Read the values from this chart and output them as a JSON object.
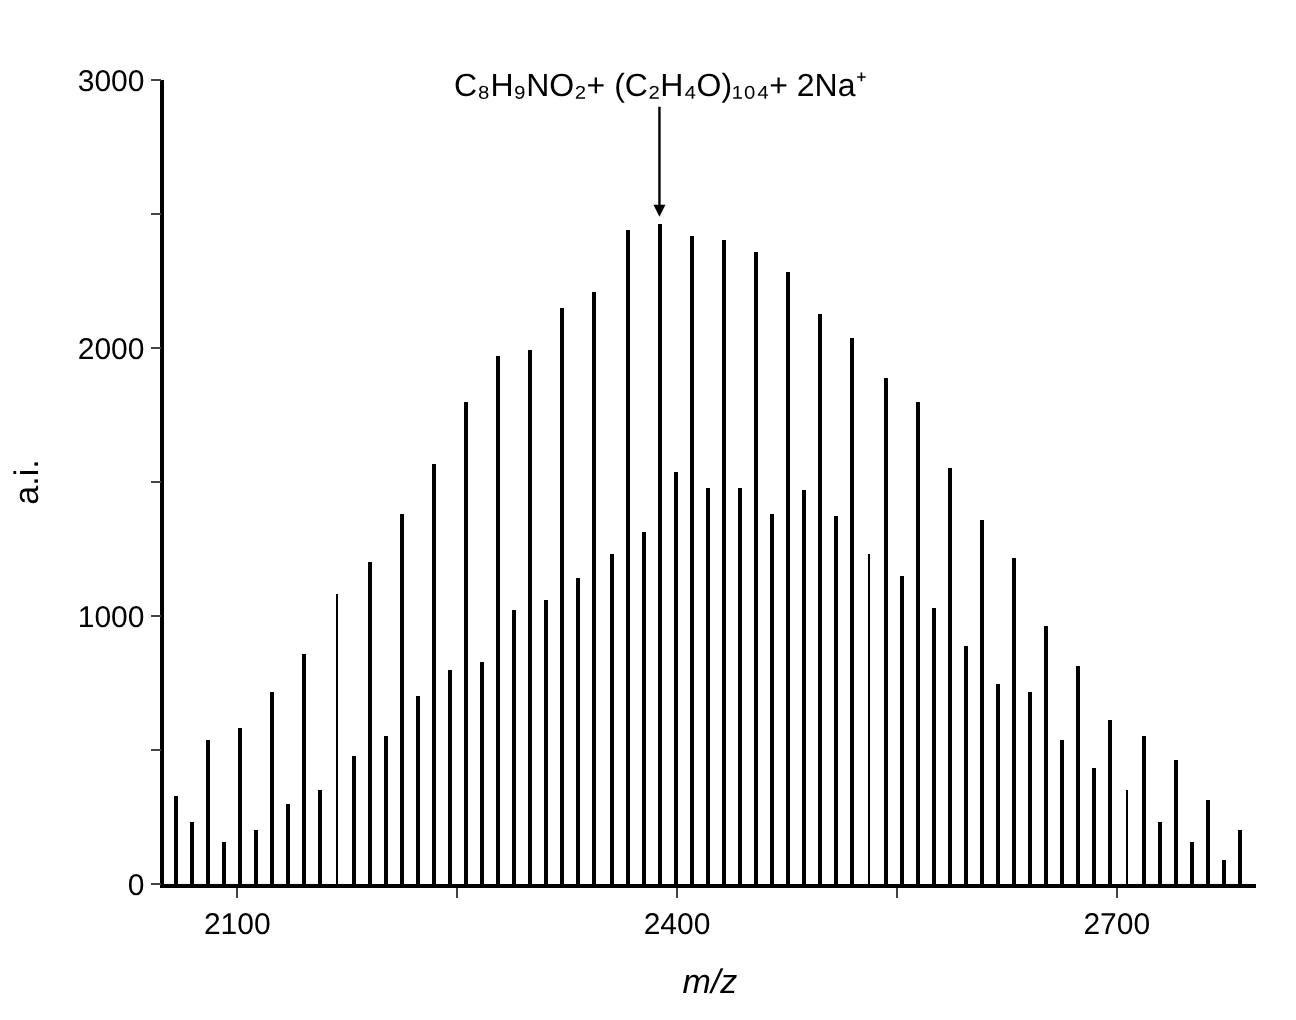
{
  "chart_data": {
    "type": "bar",
    "xlabel": "m/z",
    "ylabel": "a.i.",
    "annotations": [
      {
        "text": "C₈H₉NO₂+ (C₂H₄O)₁₀₄+ 2Na⁺",
        "x": 2388,
        "y": 2460
      }
    ],
    "x": [
      2058,
      2069,
      2080,
      2091,
      2102,
      2113,
      2124,
      2135,
      2146,
      2157,
      2168,
      2179,
      2190,
      2201,
      2212,
      2223,
      2234,
      2245,
      2256,
      2267,
      2278,
      2289,
      2300,
      2311,
      2322,
      2333,
      2344,
      2355,
      2366,
      2377,
      2388,
      2399,
      2410,
      2421,
      2432,
      2443,
      2454,
      2465,
      2476,
      2487,
      2498,
      2509,
      2520,
      2531,
      2542,
      2553,
      2564,
      2575,
      2586,
      2597,
      2608,
      2619,
      2630,
      2641,
      2652,
      2663,
      2674,
      2685,
      2696,
      2707,
      2718,
      2729,
      2740,
      2751,
      2762,
      2773,
      2784
    ],
    "series": [
      {
        "color": "#000000",
        "values": [
          330,
          230,
          540,
          160,
          580,
          200,
          720,
          300,
          860,
          350,
          1080,
          480,
          1200,
          550,
          1380,
          700,
          1570,
          800,
          1800,
          830,
          1970,
          1020,
          1990,
          1060,
          2150,
          1140,
          2210,
          1230,
          2440,
          1310,
          2460,
          1540,
          2420,
          1480,
          2400,
          1480,
          2360,
          1380,
          2280,
          1470,
          2130,
          1370,
          2040,
          1230,
          1890,
          1150,
          1800,
          1030,
          1550,
          890,
          1360,
          750,
          1220,
          720,
          960,
          540,
          810,
          430,
          610,
          350,
          550,
          230,
          460,
          160,
          310,
          90,
          200
        ]
      }
    ],
    "xlim": [
      2050,
      2795
    ],
    "xticks": [
      2100,
      {
        "value": 2250,
        "label": null
      },
      2400,
      {
        "value": 2550,
        "label": null
      },
      2700
    ],
    "ylim": [
      0,
      3000
    ],
    "yticks": [
      0,
      {
        "value": 500,
        "label": null
      },
      1000,
      {
        "value": 1500,
        "label": null
      },
      2000,
      {
        "value": 2500,
        "label": null
      },
      3000
    ]
  }
}
